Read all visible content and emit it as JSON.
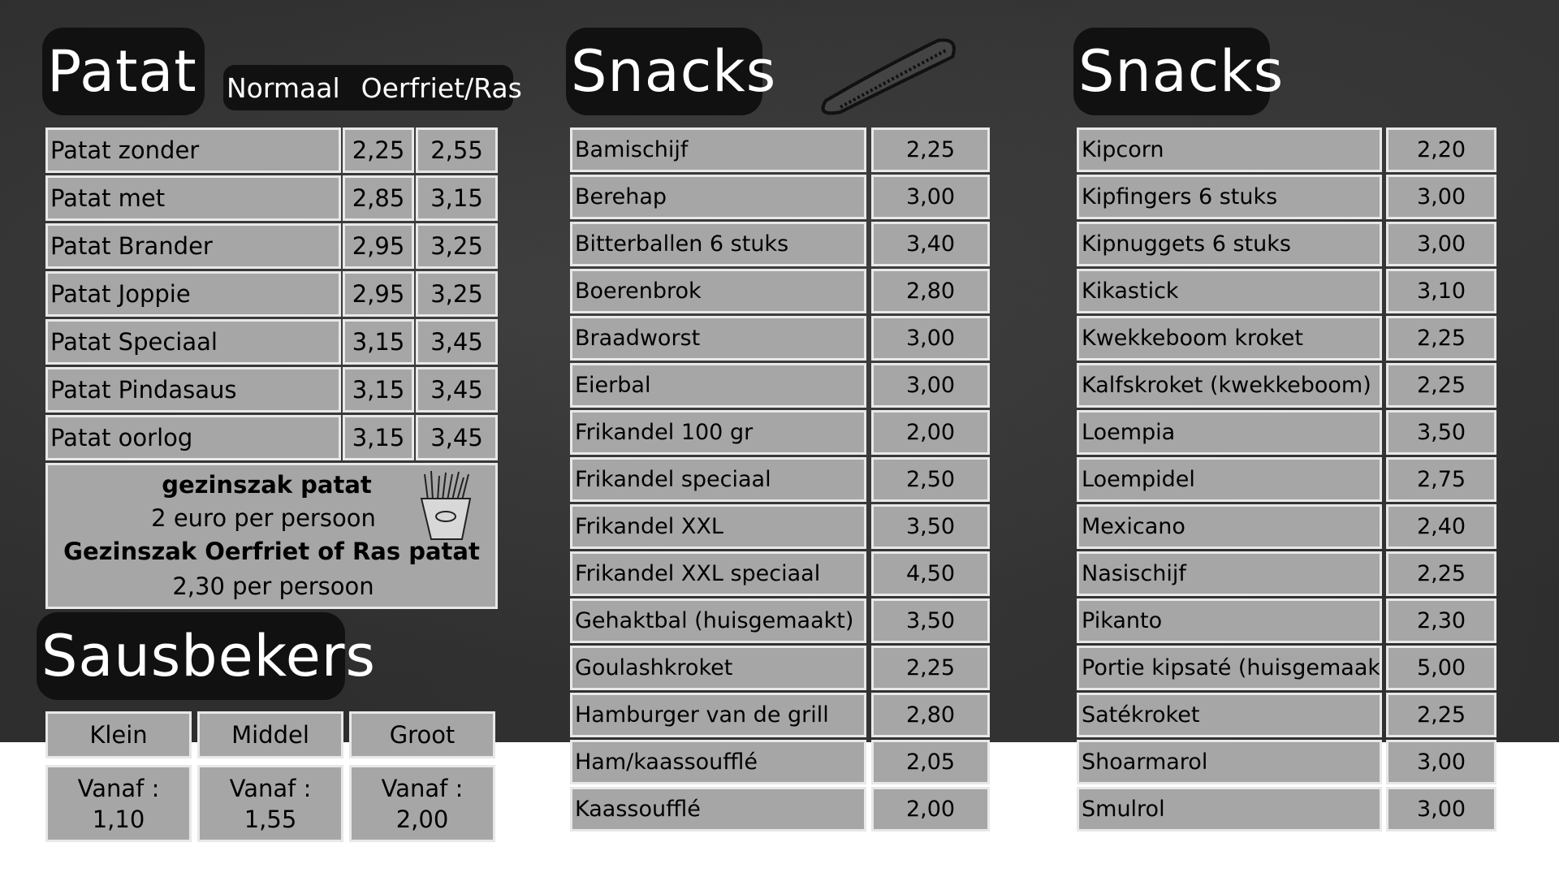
{
  "patat": {
    "title": "Patat",
    "col_normaal": "Normaal",
    "col_oerfriet": "Oerfriet/Ras",
    "items": [
      {
        "name": "Patat zonder",
        "normaal": "2,25",
        "oerfriet": "2,55"
      },
      {
        "name": "Patat met",
        "normaal": "2,85",
        "oerfriet": "3,15"
      },
      {
        "name": "Patat Brander",
        "normaal": "2,95",
        "oerfriet": "3,25"
      },
      {
        "name": "Patat Joppie",
        "normaal": "2,95",
        "oerfriet": "3,25"
      },
      {
        "name": "Patat Speciaal",
        "normaal": "3,15",
        "oerfriet": "3,45"
      },
      {
        "name": "Patat Pindasaus",
        "normaal": "3,15",
        "oerfriet": "3,45"
      },
      {
        "name": "Patat oorlog",
        "normaal": "3,15",
        "oerfriet": "3,45"
      }
    ],
    "gezinszak": {
      "line1": "gezinszak patat",
      "line2": "2 euro per persoon",
      "line3": "Gezinszak Oerfriet of Ras patat",
      "line4": "2,30 per persoon"
    },
    "fries_icon": "fries-box-icon"
  },
  "sausbekers": {
    "title": "Sausbekers",
    "sizes": [
      {
        "label": "Klein",
        "vanaf": "Vanaf :",
        "price": "1,10"
      },
      {
        "label": "Middel",
        "vanaf": "Vanaf :",
        "price": "1,55"
      },
      {
        "label": "Groot",
        "vanaf": "Vanaf :",
        "price": "2,00"
      }
    ]
  },
  "snacks1": {
    "title": "Snacks",
    "icon": "frikandel-icon",
    "items": [
      {
        "name": "Bamischijf",
        "price": "2,25"
      },
      {
        "name": "Berehap",
        "price": "3,00"
      },
      {
        "name": "Bitterballen 6 stuks",
        "price": "3,40"
      },
      {
        "name": "Boerenbrok",
        "price": "2,80"
      },
      {
        "name": "Braadworst",
        "price": "3,00"
      },
      {
        "name": "Eierbal",
        "price": "3,00"
      },
      {
        "name": "Frikandel 100 gr",
        "price": "2,00"
      },
      {
        "name": "Frikandel speciaal",
        "price": "2,50"
      },
      {
        "name": "Frikandel XXL",
        "price": "3,50"
      },
      {
        "name": "Frikandel XXL speciaal",
        "price": "4,50"
      },
      {
        "name": "Gehaktbal (huisgemaakt)",
        "price": "3,50"
      },
      {
        "name": "Goulashkroket",
        "price": "2,25"
      },
      {
        "name": "Hamburger van de grill",
        "price": "2,80"
      },
      {
        "name": "Ham/kaassoufflé",
        "price": "2,05"
      },
      {
        "name": "Kaassoufflé",
        "price": "2,00"
      }
    ]
  },
  "snacks2": {
    "title": "Snacks",
    "items": [
      {
        "name": "Kipcorn",
        "price": "2,20"
      },
      {
        "name": "Kipfingers 6 stuks",
        "price": "3,00"
      },
      {
        "name": "Kipnuggets 6 stuks",
        "price": "3,00"
      },
      {
        "name": "Kikastick",
        "price": "3,10"
      },
      {
        "name": "Kwekkeboom kroket",
        "price": "2,25"
      },
      {
        "name": "Kalfskroket (kwekkeboom)",
        "price": "2,25"
      },
      {
        "name": "Loempia",
        "price": "3,50"
      },
      {
        "name": "Loempidel",
        "price": "2,75"
      },
      {
        "name": "Mexicano",
        "price": "2,40"
      },
      {
        "name": "Nasischijf",
        "price": "2,25"
      },
      {
        "name": "Pikanto",
        "price": "2,30"
      },
      {
        "name": "Portie kipsaté (huisgemaakt)",
        "price": "5,00"
      },
      {
        "name": "Satékroket",
        "price": "2,25"
      },
      {
        "name": "Shoarmarol",
        "price": "3,00"
      },
      {
        "name": "Smulrol",
        "price": "3,00"
      }
    ]
  }
}
